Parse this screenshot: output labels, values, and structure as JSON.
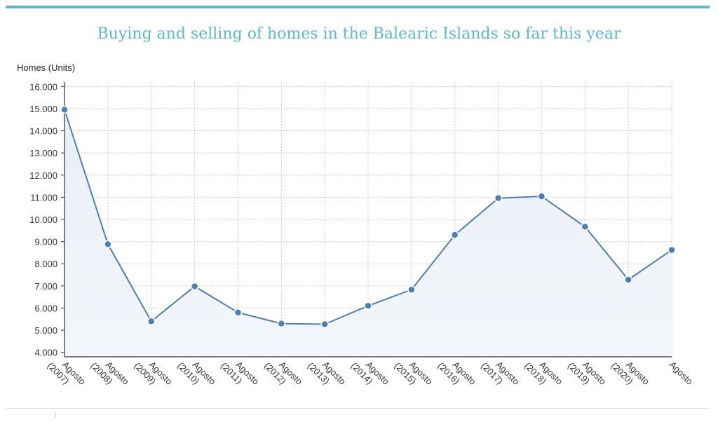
{
  "page": {
    "accent_color": "#5bb8cf"
  },
  "chart_data": {
    "type": "area",
    "title": "Buying and selling of homes in the Balearic Islands so far this year",
    "xlabel": "",
    "ylabel": "Homes (Units)",
    "categories": [
      [
        "Agosto",
        "(2007)"
      ],
      [
        "Agosto",
        "(2008)"
      ],
      [
        "Agosto",
        "(2009)"
      ],
      [
        "Agosto",
        "(2010)"
      ],
      [
        "Agosto",
        "(2011)"
      ],
      [
        "Agosto",
        "(2012)"
      ],
      [
        "Agosto",
        "(2013)"
      ],
      [
        "Agosto",
        "(2014)"
      ],
      [
        "Agosto",
        "(2015)"
      ],
      [
        "Agosto",
        "(2016)"
      ],
      [
        "Agosto",
        "(2017)"
      ],
      [
        "Agosto",
        "(2018)"
      ],
      [
        "Agosto",
        "(2019)"
      ],
      [
        "Agosto",
        "(2020)"
      ],
      [
        "Agosto"
      ]
    ],
    "series": [
      {
        "values": [
          14950,
          8880,
          5400,
          6980,
          5800,
          5300,
          5270,
          6100,
          6830,
          9300,
          10960,
          11040,
          9670,
          7280,
          8620
        ],
        "color": "#4f7fb0"
      }
    ],
    "ylim": [
      3800,
      16200
    ],
    "yticks": [
      4000,
      5000,
      6000,
      7000,
      8000,
      9000,
      10000,
      11000,
      12000,
      13000,
      14000,
      15000,
      16000
    ],
    "ytick_labels": [
      "4.000",
      "5.000",
      "6.000",
      "7.000",
      "8.000",
      "9.000",
      "10.000",
      "11.000",
      "12.000",
      "13.000",
      "14.000",
      "15.000",
      "16.000"
    ],
    "grid": true,
    "legend": "none"
  }
}
